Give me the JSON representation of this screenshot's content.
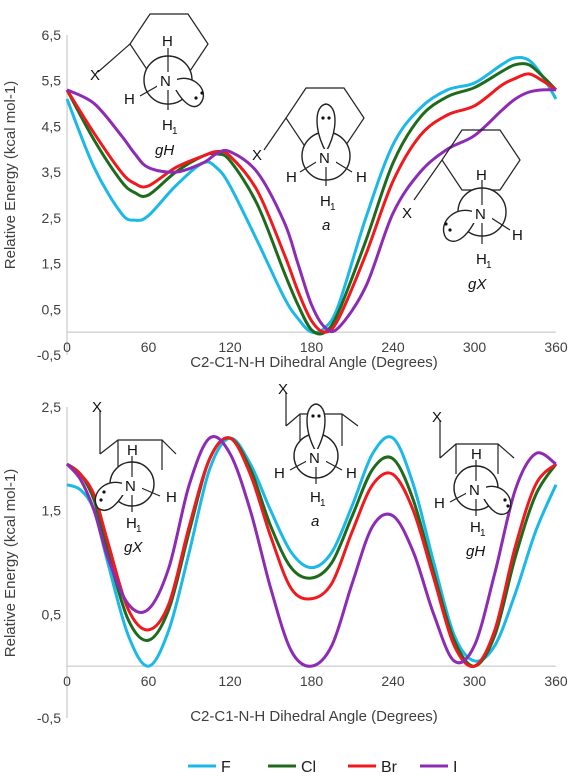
{
  "colors": {
    "F": "#1CB8E8",
    "Cl": "#1E6B1E",
    "Br": "#F0191E",
    "I": "#8E2BB5",
    "axis": "#bfbfbf",
    "text": "#404040"
  },
  "legend": {
    "items": [
      {
        "label": "F",
        "key": "F"
      },
      {
        "label": "Cl",
        "key": "Cl"
      },
      {
        "label": "Br",
        "key": "Br"
      },
      {
        "label": "I",
        "key": "I"
      }
    ]
  },
  "chart_data": [
    {
      "type": "line",
      "xlabel": "C2-C1-N-H Dihedral Angle (Degrees)",
      "ylabel": "Relative Energy (kcal mol-1)",
      "xlim": [
        0,
        360
      ],
      "ylim": [
        -0.5,
        6.5
      ],
      "xticks": [
        0,
        60,
        120,
        180,
        240,
        300,
        360
      ],
      "xtick_labels": [
        "0",
        "60",
        "120",
        "180",
        "240",
        "300",
        "360"
      ],
      "yticks": [
        -0.5,
        0.5,
        1.5,
        2.5,
        3.5,
        4.5,
        5.5,
        6.5
      ],
      "ytick_labels": [
        "-0,5",
        "0,5",
        "1,5",
        "2,5",
        "3,5",
        "4,5",
        "5,5",
        "6,5"
      ],
      "series": [
        {
          "name": "F",
          "key": "F",
          "x": [
            0,
            20,
            40,
            50,
            60,
            80,
            100,
            110,
            120,
            140,
            160,
            170,
            180,
            190,
            200,
            220,
            240,
            260,
            280,
            300,
            320,
            330,
            340,
            350,
            360
          ],
          "y": [
            5.1,
            3.6,
            2.6,
            2.45,
            2.55,
            3.2,
            3.7,
            3.6,
            3.2,
            2.0,
            0.75,
            0.3,
            0.0,
            0.1,
            0.6,
            2.5,
            4.1,
            4.9,
            5.3,
            5.45,
            5.85,
            6.0,
            5.95,
            5.6,
            5.1
          ]
        },
        {
          "name": "Cl",
          "key": "Cl",
          "x": [
            0,
            20,
            40,
            50,
            60,
            80,
            100,
            110,
            120,
            140,
            160,
            170,
            180,
            190,
            200,
            220,
            240,
            260,
            280,
            300,
            320,
            330,
            340,
            350,
            360
          ],
          "y": [
            5.3,
            4.2,
            3.3,
            3.05,
            3.0,
            3.5,
            3.85,
            3.9,
            3.75,
            2.8,
            1.3,
            0.6,
            0.05,
            0.0,
            0.45,
            2.0,
            3.7,
            4.7,
            5.15,
            5.35,
            5.7,
            5.85,
            5.85,
            5.6,
            5.3
          ]
        },
        {
          "name": "Br",
          "key": "Br",
          "x": [
            0,
            20,
            40,
            50,
            60,
            80,
            100,
            110,
            120,
            140,
            160,
            170,
            180,
            190,
            200,
            220,
            240,
            260,
            280,
            300,
            320,
            330,
            340,
            350,
            360
          ],
          "y": [
            5.3,
            4.35,
            3.5,
            3.25,
            3.2,
            3.6,
            3.85,
            3.95,
            3.85,
            3.1,
            1.7,
            0.9,
            0.25,
            0.0,
            0.3,
            1.7,
            3.3,
            4.3,
            4.75,
            4.95,
            5.4,
            5.55,
            5.65,
            5.5,
            5.3
          ]
        },
        {
          "name": "I",
          "key": "I",
          "x": [
            0,
            20,
            40,
            50,
            60,
            80,
            100,
            110,
            120,
            140,
            160,
            170,
            180,
            190,
            200,
            220,
            240,
            260,
            280,
            300,
            320,
            330,
            340,
            350,
            360
          ],
          "y": [
            5.3,
            5.0,
            4.3,
            3.9,
            3.6,
            3.5,
            3.7,
            3.9,
            3.95,
            3.5,
            2.4,
            1.5,
            0.6,
            0.1,
            0.1,
            1.0,
            2.6,
            3.5,
            4.0,
            4.3,
            4.85,
            5.1,
            5.25,
            5.3,
            5.3
          ]
        }
      ]
    },
    {
      "type": "line",
      "xlabel": "C2-C1-N-H Dihedral Angle (Degrees)",
      "ylabel": "Relative Energy (kcal mol-1)",
      "xlim": [
        0,
        360
      ],
      "ylim": [
        -0.5,
        2.5
      ],
      "xticks": [
        0,
        60,
        120,
        180,
        240,
        300,
        360
      ],
      "xtick_labels": [
        "0",
        "60",
        "120",
        "180",
        "240",
        "300",
        "360"
      ],
      "yticks": [
        -0.5,
        0.5,
        1.5,
        2.5
      ],
      "ytick_labels": [
        "-0,5",
        "0,5",
        "1,5",
        "2,5"
      ],
      "series": [
        {
          "name": "F",
          "key": "F",
          "x": [
            0,
            10,
            20,
            30,
            45,
            60,
            75,
            90,
            105,
            120,
            135,
            150,
            165,
            180,
            195,
            210,
            225,
            240,
            255,
            270,
            285,
            300,
            315,
            330,
            345,
            360
          ],
          "y": [
            1.75,
            1.7,
            1.5,
            1.0,
            0.3,
            0.0,
            0.35,
            1.1,
            1.9,
            2.2,
            1.95,
            1.5,
            1.1,
            0.95,
            1.1,
            1.55,
            2.05,
            2.2,
            1.75,
            1.0,
            0.3,
            0.05,
            0.2,
            0.7,
            1.3,
            1.75
          ]
        },
        {
          "name": "Cl",
          "key": "Cl",
          "x": [
            0,
            10,
            20,
            30,
            45,
            60,
            75,
            90,
            105,
            120,
            135,
            150,
            165,
            180,
            195,
            210,
            225,
            240,
            255,
            270,
            285,
            300,
            315,
            330,
            345,
            360
          ],
          "y": [
            1.95,
            1.85,
            1.6,
            1.1,
            0.45,
            0.25,
            0.55,
            1.3,
            2.0,
            2.2,
            1.9,
            1.35,
            0.95,
            0.85,
            1.0,
            1.45,
            1.9,
            2.0,
            1.6,
            0.9,
            0.25,
            0.0,
            0.3,
            1.05,
            1.65,
            1.95
          ]
        },
        {
          "name": "Br",
          "key": "Br",
          "x": [
            0,
            10,
            20,
            30,
            45,
            60,
            75,
            90,
            105,
            120,
            135,
            150,
            165,
            180,
            195,
            210,
            225,
            240,
            255,
            270,
            285,
            300,
            315,
            330,
            345,
            360
          ],
          "y": [
            1.95,
            1.85,
            1.65,
            1.2,
            0.55,
            0.35,
            0.6,
            1.35,
            2.0,
            2.2,
            1.85,
            1.25,
            0.75,
            0.65,
            0.8,
            1.3,
            1.75,
            1.85,
            1.5,
            0.85,
            0.2,
            0.0,
            0.35,
            1.15,
            1.75,
            1.95
          ]
        },
        {
          "name": "I",
          "key": "I",
          "x": [
            0,
            10,
            20,
            30,
            45,
            60,
            75,
            90,
            105,
            120,
            135,
            150,
            165,
            180,
            195,
            210,
            225,
            240,
            255,
            270,
            285,
            300,
            315,
            330,
            345,
            360
          ],
          "y": [
            1.95,
            1.8,
            1.5,
            1.05,
            0.6,
            0.55,
            0.95,
            1.75,
            2.2,
            2.05,
            1.5,
            0.75,
            0.15,
            0.0,
            0.2,
            0.8,
            1.35,
            1.45,
            1.1,
            0.5,
            0.05,
            0.2,
            0.9,
            1.7,
            2.05,
            1.95
          ]
        }
      ]
    }
  ],
  "conformers": {
    "top": [
      {
        "name": "gH",
        "X": "X",
        "H": "H",
        "H1": "H",
        "sub": "1"
      },
      {
        "name": "a",
        "X": "X",
        "H": "H",
        "H1": "H",
        "sub": "1"
      },
      {
        "name": "gX",
        "X": "X",
        "H": "H",
        "H1": "H",
        "sub": "1"
      }
    ],
    "bottom": [
      {
        "name": "gX",
        "X": "X",
        "H": "H",
        "H1": "H",
        "sub": "1"
      },
      {
        "name": "a",
        "X": "X",
        "H": "H",
        "H1": "H",
        "sub": "1"
      },
      {
        "name": "gH",
        "X": "X",
        "H": "H",
        "H1": "H",
        "sub": "1"
      }
    ],
    "N": "N"
  }
}
